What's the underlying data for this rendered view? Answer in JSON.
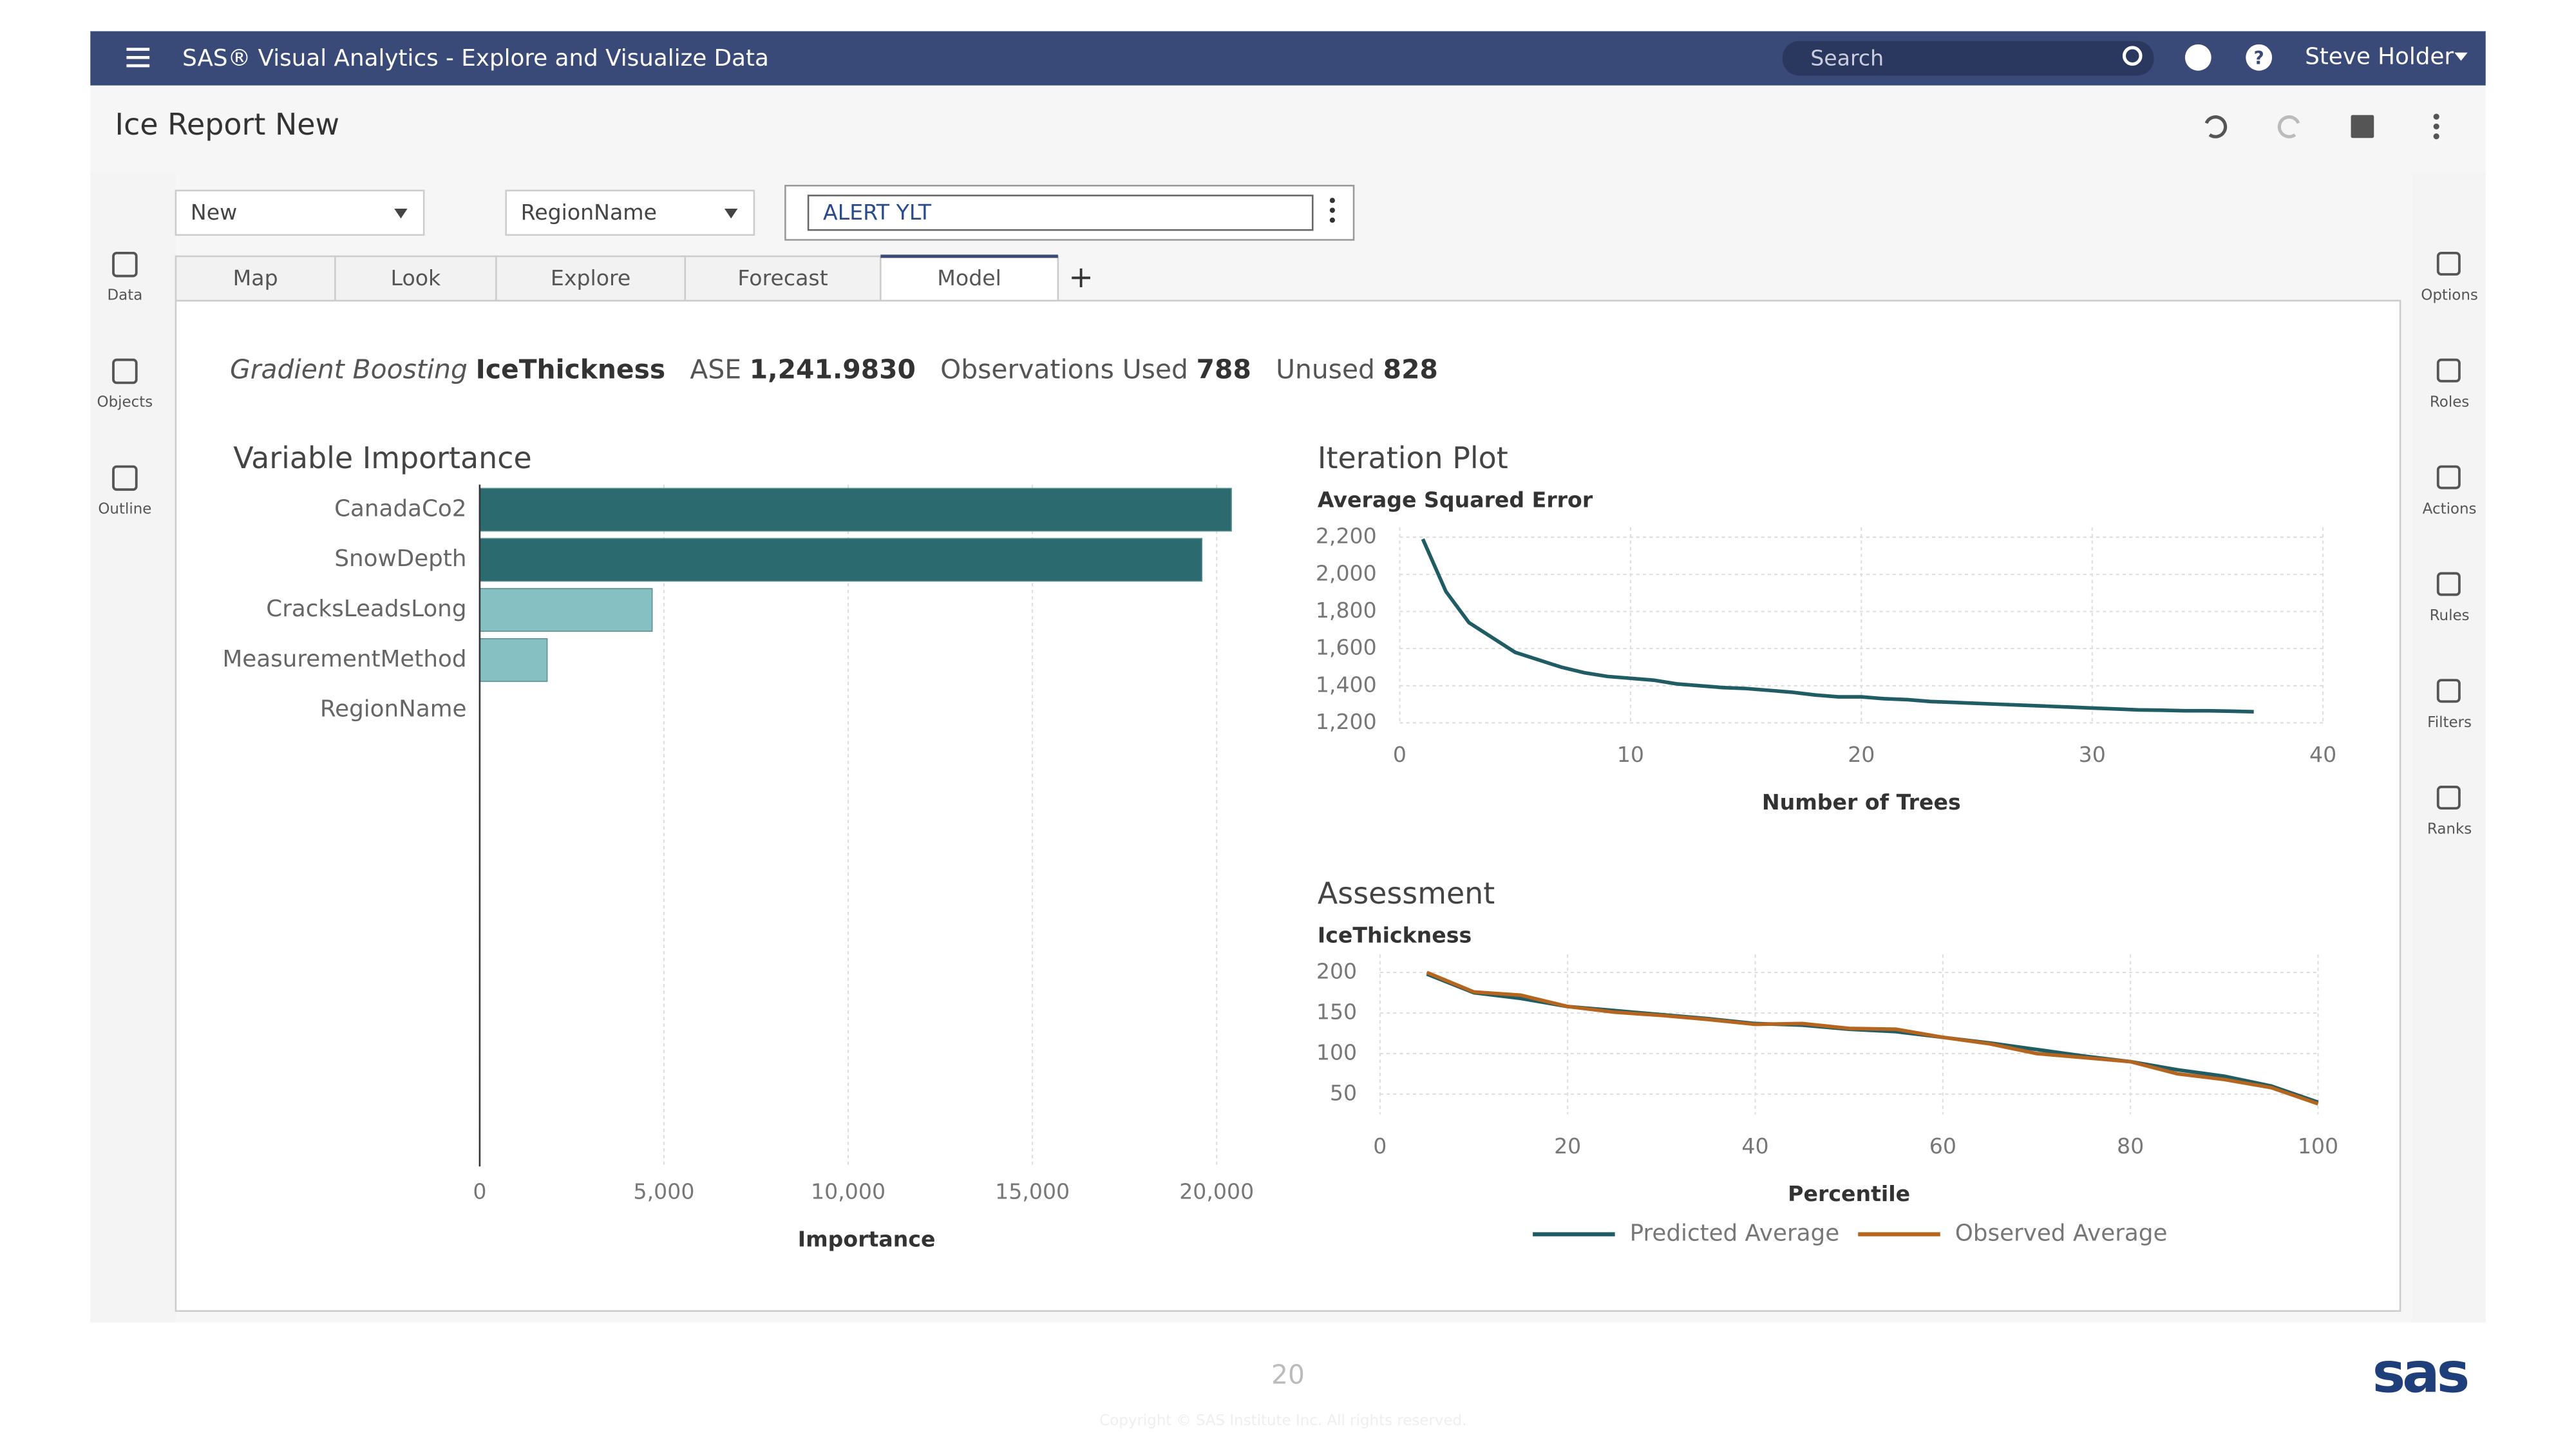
{
  "header": {
    "app_title": "SAS® Visual Analytics - Explore and Visualize Data",
    "search": "Search",
    "user": "Steve Holder"
  },
  "report": {
    "title": "Ice Report New",
    "controls": [
      "New",
      "RegionName",
      "ALERT YLT"
    ],
    "tabs": [
      "Map",
      "Look",
      "Explore",
      "Forecast",
      "Model"
    ]
  },
  "left_rail": [
    "Data",
    "Objects",
    "Outline"
  ],
  "right_rail": [
    "Options",
    "Roles",
    "Actions",
    "Rules",
    "Filters",
    "Ranks"
  ],
  "summary": {
    "model": "Gradient Boosting",
    "target": "IceThickness",
    "ase_label": "ASE",
    "ase": "1,241.9830",
    "used_label": "Observations Used",
    "used": "788",
    "unused_label": "Unused",
    "unused": "828"
  },
  "footer": {
    "page": "20",
    "copyright": "Copyright © SAS Institute Inc. All rights reserved.",
    "logo": "sas"
  },
  "chart_data": [
    {
      "type": "hbar",
      "title": "Variable Importance",
      "x_label": "Importance",
      "categories": [
        "CanadaCo2",
        "SnowDepth",
        "CracksLeadsLong",
        "MeasurementMethod",
        "RegionName"
      ],
      "values": [
        20400,
        19600,
        4680,
        1830,
        0
      ],
      "colors": [
        "#2b6b70",
        "#2b6b70",
        "#86c0c2",
        "#86c0c2",
        "#86c0c2"
      ],
      "xlim": [
        0,
        21000
      ],
      "xticks": [
        0,
        {
          "value": 5000,
          "label": "5,000"
        },
        {
          "value": 10000,
          "label": "10,000"
        },
        {
          "value": 15000,
          "label": "15,000"
        },
        {
          "value": 20000,
          "label": "20,000"
        }
      ],
      "grid": true
    },
    {
      "type": "line",
      "title": "Iteration Plot",
      "y_label": "Average Squared Error",
      "x_label": "Number of Trees",
      "x": [
        1,
        2,
        3,
        4,
        5,
        6,
        7,
        8,
        9,
        10,
        11,
        12,
        13,
        14,
        15,
        16,
        17,
        18,
        19,
        20,
        21,
        22,
        23,
        24,
        25,
        26,
        27,
        28,
        29,
        30,
        31,
        32,
        33,
        34,
        35,
        36,
        37
      ],
      "series": [
        {
          "color": "#1f5c63",
          "values": [
            2190,
            1908,
            1740,
            1660,
            1580,
            1540,
            1500,
            1470,
            1450,
            1440,
            1430,
            1410,
            1400,
            1390,
            1385,
            1375,
            1365,
            1350,
            1340,
            1340,
            1330,
            1325,
            1315,
            1310,
            1305,
            1300,
            1295,
            1290,
            1285,
            1280,
            1275,
            1270,
            1268,
            1265,
            1265,
            1263,
            1260
          ]
        }
      ],
      "xlim": [
        0,
        40
      ],
      "xticks": [
        0,
        10,
        20,
        30,
        40
      ],
      "ylim": [
        1200,
        2200
      ],
      "yticks": [
        {
          "value": 1200,
          "label": "1,200"
        },
        {
          "value": 1400,
          "label": "1,400"
        },
        {
          "value": 1600,
          "label": "1,600"
        },
        {
          "value": 1800,
          "label": "1,800"
        },
        {
          "value": 2000,
          "label": "2,000"
        },
        {
          "value": 2200,
          "label": "2,200"
        }
      ],
      "grid": true
    },
    {
      "type": "line",
      "title": "Assessment",
      "y_label": "IceThickness",
      "x_label": "Percentile",
      "x": [
        5,
        10,
        15,
        20,
        25,
        30,
        35,
        40,
        45,
        50,
        55,
        60,
        65,
        70,
        75,
        80,
        85,
        90,
        95,
        100
      ],
      "series": [
        {
          "name": "Predicted Average",
          "color": "#1f5c63",
          "values": [
            198,
            175,
            168,
            158,
            153,
            148,
            143,
            137,
            135,
            130,
            127,
            120,
            113,
            105,
            97,
            90,
            80,
            72,
            60,
            40
          ]
        },
        {
          "name": "Observed Average",
          "color": "#b5651d",
          "values": [
            200,
            176,
            172,
            158,
            151,
            147,
            142,
            136,
            137,
            131,
            130,
            120,
            112,
            100,
            95,
            90,
            75,
            68,
            58,
            38
          ]
        }
      ],
      "xlim": [
        0,
        100
      ],
      "xticks": [
        0,
        20,
        40,
        60,
        80,
        100
      ],
      "ylim": [
        25,
        210
      ],
      "yticks": [
        50,
        100,
        150,
        200
      ],
      "grid": true,
      "legend": "bottom"
    }
  ]
}
